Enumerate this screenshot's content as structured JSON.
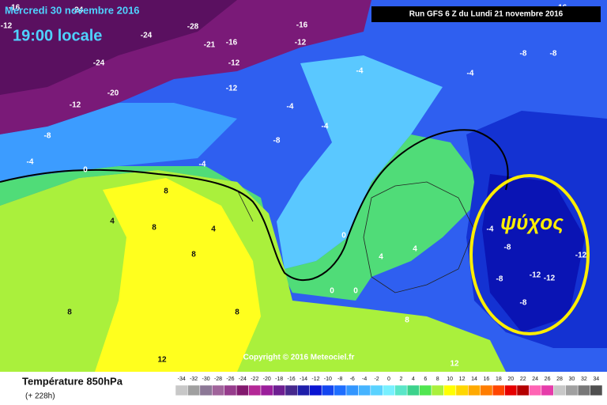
{
  "header": {
    "date": "Mercredi 30 novembre 2016",
    "time": "19:00 locale",
    "run": "Run GFS 6 Z du Lundi 21 novembre 2016"
  },
  "map": {
    "labels": [
      "-16",
      "-24",
      "-12",
      "-24",
      "-28",
      "-16",
      "-21",
      "-16",
      "-12",
      "-24",
      "-12",
      "-20",
      "-12",
      "-12",
      "-8",
      "-8",
      "-4",
      "-4",
      "-4",
      "-8",
      "-4",
      "-8",
      "-4",
      "-4",
      "0",
      "8",
      "4",
      "8",
      "4",
      "8",
      "0",
      "4",
      "8",
      "8",
      "12",
      "0",
      "0",
      "-8",
      "-8",
      "-12",
      "-12",
      "-12",
      "-8",
      "-4",
      "4",
      "8",
      "12",
      "-16"
    ],
    "annotation": "ψύχος",
    "copyright": "Copyright © 2016 Meteociel.fr"
  },
  "legend": {
    "title": "Température 850hPa",
    "subtitle": "(+ 228h)",
    "scale": [
      -34,
      -32,
      -30,
      -28,
      -26,
      -24,
      -22,
      -20,
      -18,
      -16,
      -14,
      -12,
      -10,
      -8,
      -6,
      -4,
      -2,
      0,
      2,
      4,
      6,
      8,
      10,
      12,
      14,
      16,
      18,
      20,
      22,
      24,
      26,
      28,
      30,
      32,
      34
    ],
    "colors": [
      "#c8c8c8",
      "#a0a0a0",
      "#8c7896",
      "#a0649b",
      "#963c8c",
      "#82196e",
      "#b42896",
      "#9b1e9b",
      "#6e1e91",
      "#46288c",
      "#1e1eaa",
      "#0a14d2",
      "#1446f0",
      "#1e6eff",
      "#3296ff",
      "#46b4ff",
      "#5ad2ff",
      "#78f0ff",
      "#5ae6c8",
      "#3cd28c",
      "#50e650",
      "#aaf03c",
      "#ffff00",
      "#ffd700",
      "#ffaa00",
      "#ff7d00",
      "#ff4600",
      "#e60000",
      "#b40000",
      "#ff64b4",
      "#e63caa",
      "#c8c8c8",
      "#a0a0a0",
      "#787878",
      "#505050"
    ]
  }
}
